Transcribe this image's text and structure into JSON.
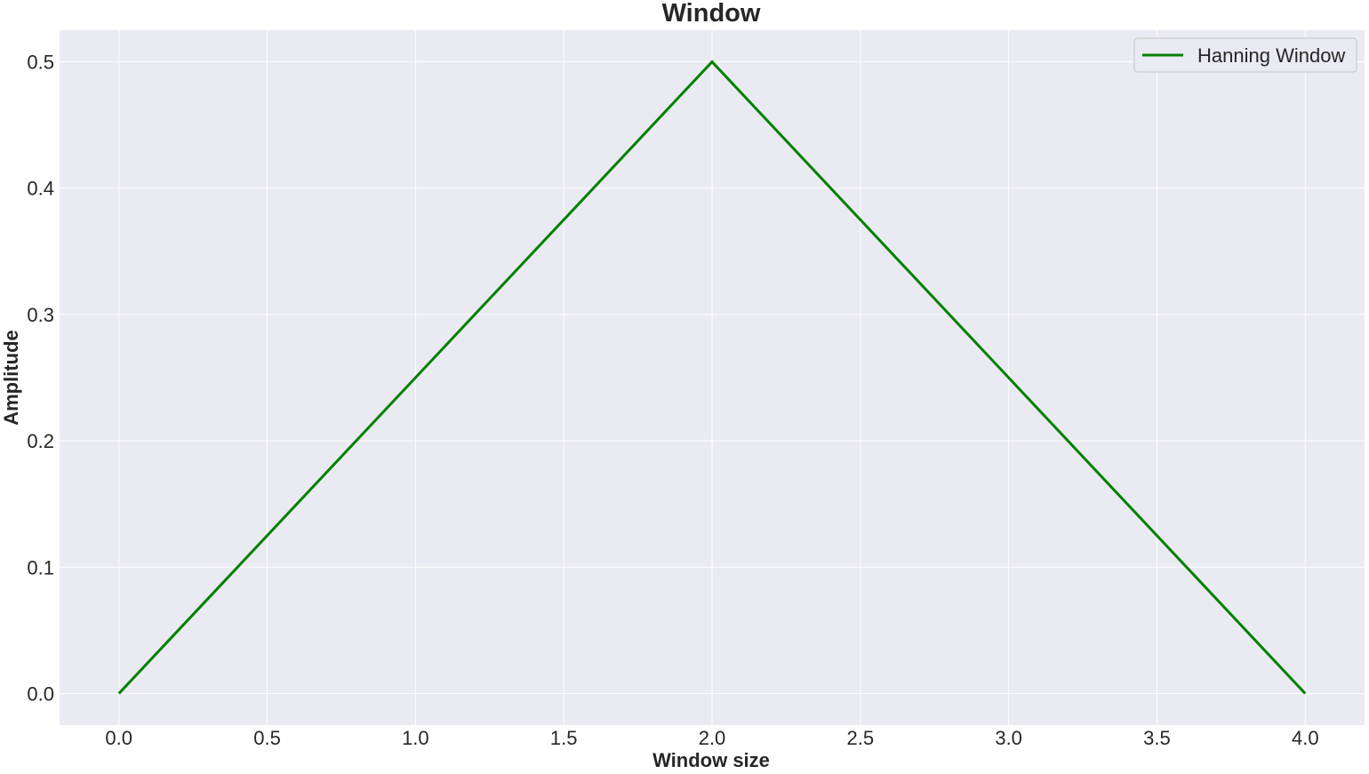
{
  "chart_data": {
    "type": "line",
    "title": "Window",
    "xlabel": "Window size",
    "ylabel": "Amplitude",
    "xlim": [
      -0.2,
      4.2
    ],
    "ylim": [
      -0.025,
      0.525
    ],
    "xticks": [
      0.0,
      0.5,
      1.0,
      1.5,
      2.0,
      2.5,
      3.0,
      3.5,
      4.0
    ],
    "xtick_labels": [
      "0.0",
      "0.5",
      "1.0",
      "1.5",
      "2.0",
      "2.5",
      "3.0",
      "3.5",
      "4.0"
    ],
    "yticks": [
      0.0,
      0.1,
      0.2,
      0.3,
      0.4,
      0.5
    ],
    "ytick_labels": [
      "0.0",
      "0.1",
      "0.2",
      "0.3",
      "0.4",
      "0.5"
    ],
    "grid": true,
    "legend_position": "top-right",
    "series": [
      {
        "name": "Hanning Window",
        "color": "#008000",
        "x": [
          0,
          1,
          2,
          3,
          4
        ],
        "y": [
          0.0,
          0.25,
          0.5,
          0.25,
          0.0
        ]
      }
    ]
  },
  "style": {
    "plot_background": "#eaeaf2",
    "grid_color": "#ffffff",
    "text_color": "#262626"
  }
}
